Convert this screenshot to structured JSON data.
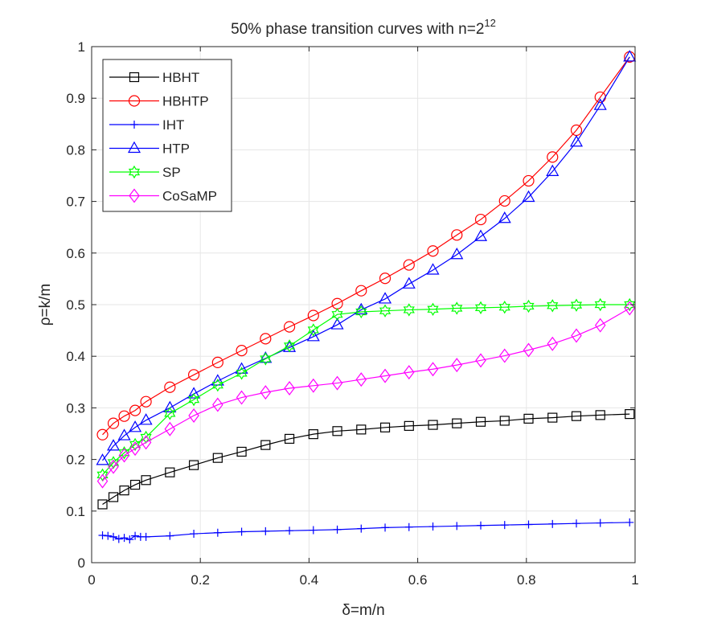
{
  "chart_data": {
    "type": "line",
    "title": "50% phase transition curves with n=2",
    "title_exponent": "12",
    "xlabel": "δ=m/n",
    "ylabel": "ρ=k/m",
    "xlim": [
      0,
      1
    ],
    "ylim": [
      0,
      1
    ],
    "xticks": [
      0,
      0.2,
      0.4,
      0.6,
      0.8,
      1
    ],
    "xtick_labels": [
      "0",
      "0.2",
      "0.4",
      "0.6",
      "0.8",
      "1"
    ],
    "yticks": [
      0,
      0.1,
      0.2,
      0.3,
      0.4,
      0.5,
      0.6,
      0.7,
      0.8,
      0.9,
      1
    ],
    "ytick_labels": [
      "0",
      "0.1",
      "0.2",
      "0.3",
      "0.4",
      "0.5",
      "0.6",
      "0.7",
      "0.8",
      "0.9",
      "1"
    ],
    "grid": true,
    "legend_position": "top-left",
    "series": [
      {
        "name": "HBHT",
        "color": "#000000",
        "marker": "square",
        "x": [
          0.02,
          0.04,
          0.06,
          0.08,
          0.1,
          0.144,
          0.188,
          0.232,
          0.276,
          0.32,
          0.364,
          0.408,
          0.452,
          0.496,
          0.54,
          0.584,
          0.628,
          0.672,
          0.716,
          0.76,
          0.804,
          0.848,
          0.892,
          0.936,
          0.99
        ],
        "y": [
          0.113,
          0.127,
          0.14,
          0.151,
          0.16,
          0.175,
          0.189,
          0.203,
          0.215,
          0.228,
          0.24,
          0.249,
          0.255,
          0.258,
          0.262,
          0.265,
          0.267,
          0.27,
          0.273,
          0.275,
          0.279,
          0.281,
          0.284,
          0.286,
          0.288
        ]
      },
      {
        "name": "HBHTP",
        "color": "#ff0000",
        "marker": "circle",
        "x": [
          0.02,
          0.04,
          0.06,
          0.08,
          0.1,
          0.144,
          0.188,
          0.232,
          0.276,
          0.32,
          0.364,
          0.408,
          0.452,
          0.496,
          0.54,
          0.584,
          0.628,
          0.672,
          0.716,
          0.76,
          0.804,
          0.848,
          0.892,
          0.936,
          0.99
        ],
        "y": [
          0.248,
          0.27,
          0.284,
          0.295,
          0.312,
          0.34,
          0.364,
          0.388,
          0.411,
          0.434,
          0.457,
          0.479,
          0.502,
          0.527,
          0.551,
          0.577,
          0.604,
          0.635,
          0.665,
          0.701,
          0.74,
          0.786,
          0.838,
          0.902,
          0.98
        ]
      },
      {
        "name": "IHT",
        "color": "#0000ff",
        "marker": "plus",
        "x": [
          0.02,
          0.03,
          0.04,
          0.05,
          0.06,
          0.07,
          0.08,
          0.09,
          0.1,
          0.144,
          0.188,
          0.232,
          0.276,
          0.32,
          0.364,
          0.408,
          0.452,
          0.496,
          0.54,
          0.584,
          0.628,
          0.672,
          0.716,
          0.76,
          0.804,
          0.848,
          0.892,
          0.936,
          0.99
        ],
        "y": [
          0.053,
          0.052,
          0.05,
          0.046,
          0.048,
          0.045,
          0.052,
          0.05,
          0.05,
          0.052,
          0.056,
          0.058,
          0.06,
          0.061,
          0.062,
          0.063,
          0.064,
          0.066,
          0.068,
          0.069,
          0.07,
          0.071,
          0.072,
          0.073,
          0.074,
          0.075,
          0.076,
          0.077,
          0.078
        ]
      },
      {
        "name": "HTP",
        "color": "#0000ff",
        "marker": "triangle",
        "x": [
          0.02,
          0.04,
          0.06,
          0.08,
          0.1,
          0.144,
          0.188,
          0.232,
          0.276,
          0.32,
          0.364,
          0.408,
          0.452,
          0.496,
          0.54,
          0.584,
          0.628,
          0.672,
          0.716,
          0.76,
          0.804,
          0.848,
          0.892,
          0.936,
          0.99
        ],
        "y": [
          0.198,
          0.226,
          0.246,
          0.262,
          0.276,
          0.3,
          0.327,
          0.352,
          0.375,
          0.396,
          0.417,
          0.438,
          0.461,
          0.49,
          0.511,
          0.54,
          0.567,
          0.597,
          0.632,
          0.667,
          0.708,
          0.758,
          0.815,
          0.886,
          0.98
        ]
      },
      {
        "name": "SP",
        "color": "#00ff00",
        "marker": "hexagram",
        "x": [
          0.02,
          0.04,
          0.06,
          0.08,
          0.1,
          0.144,
          0.188,
          0.232,
          0.276,
          0.32,
          0.364,
          0.408,
          0.452,
          0.496,
          0.54,
          0.584,
          0.628,
          0.672,
          0.716,
          0.76,
          0.804,
          0.848,
          0.892,
          0.936,
          0.99
        ],
        "y": [
          0.17,
          0.194,
          0.213,
          0.229,
          0.243,
          0.289,
          0.316,
          0.344,
          0.367,
          0.395,
          0.42,
          0.451,
          0.481,
          0.486,
          0.488,
          0.49,
          0.491,
          0.493,
          0.494,
          0.495,
          0.497,
          0.498,
          0.499,
          0.5,
          0.5
        ]
      },
      {
        "name": "CoSaMP",
        "color": "#ff00ff",
        "marker": "diamond",
        "x": [
          0.02,
          0.04,
          0.06,
          0.08,
          0.1,
          0.144,
          0.188,
          0.232,
          0.276,
          0.32,
          0.364,
          0.408,
          0.452,
          0.496,
          0.54,
          0.584,
          0.628,
          0.672,
          0.716,
          0.76,
          0.804,
          0.848,
          0.892,
          0.936,
          0.99
        ],
        "y": [
          0.158,
          0.186,
          0.208,
          0.221,
          0.233,
          0.259,
          0.285,
          0.306,
          0.32,
          0.33,
          0.338,
          0.343,
          0.348,
          0.355,
          0.362,
          0.369,
          0.375,
          0.383,
          0.392,
          0.401,
          0.412,
          0.424,
          0.44,
          0.46,
          0.493
        ]
      }
    ]
  }
}
